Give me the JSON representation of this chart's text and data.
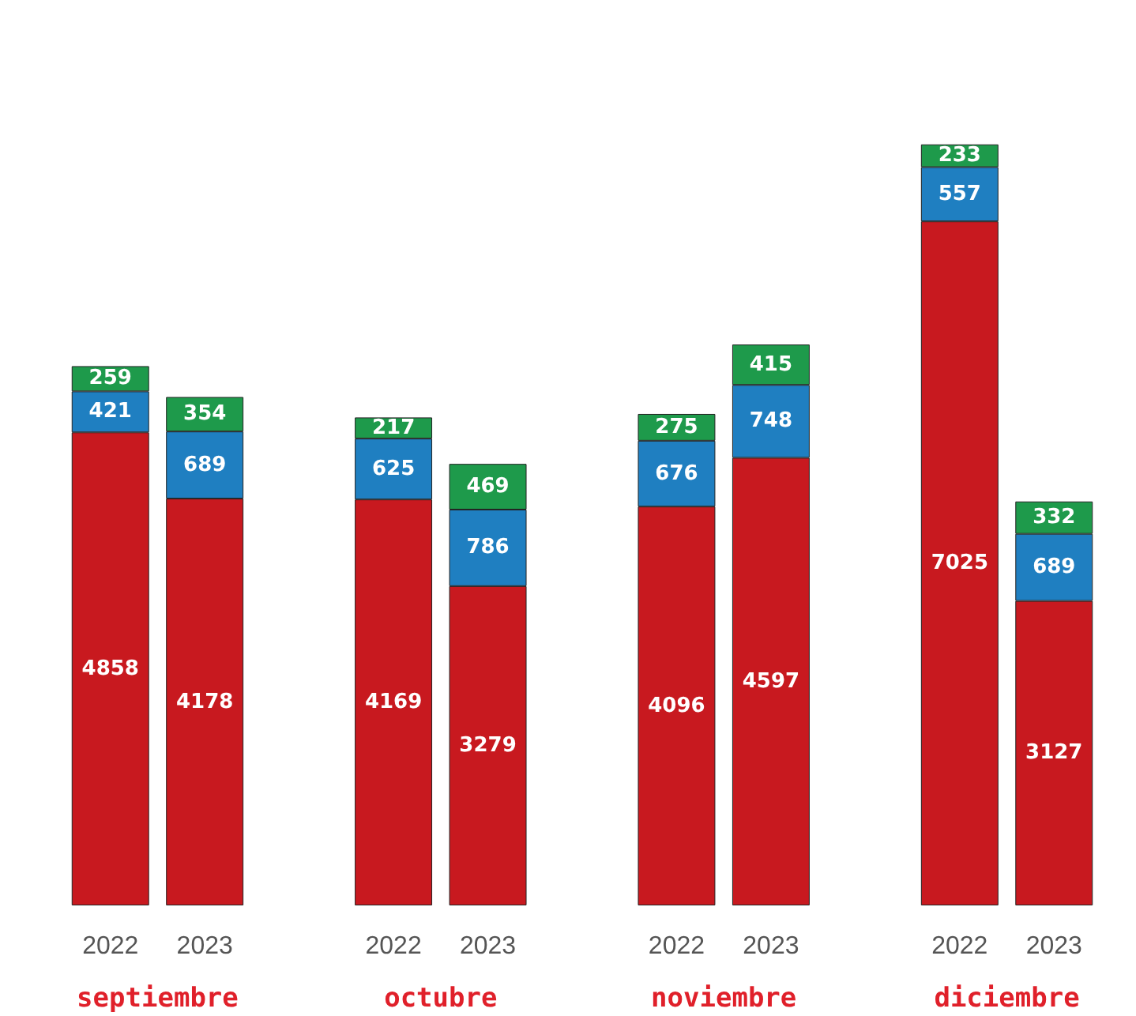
{
  "chart_data": {
    "type": "bar",
    "stacked": true,
    "data_labels": true,
    "categories": [
      "2022",
      "2023",
      "2022",
      "2023",
      "2022",
      "2023",
      "2022",
      "2023"
    ],
    "series": [
      {
        "color": "#c8191f",
        "values": [
          4858,
          4178,
          4169,
          3279,
          4096,
          4597,
          7025,
          3127
        ]
      },
      {
        "color": "#1f7fc1",
        "values": [
          421,
          689,
          625,
          786,
          676,
          748,
          557,
          689
        ]
      },
      {
        "color": "#1e9a4b",
        "values": [
          259,
          354,
          217,
          469,
          275,
          415,
          233,
          332
        ]
      }
    ],
    "annotations": [
      "septiembre",
      "octubre",
      "noviembre",
      "diciembre"
    ]
  }
}
